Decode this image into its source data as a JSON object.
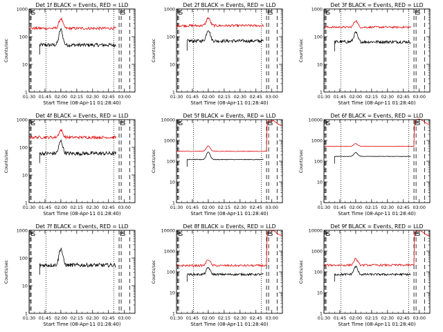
{
  "figure": {
    "background": "#ffffff",
    "colors": {
      "events": "#000000",
      "lld": "#e00000",
      "axes": "#000000"
    }
  },
  "chart_data": [
    {
      "type": "line",
      "panel": "Det 1f",
      "title": "Det 1f BLACK = Events, RED = LLD",
      "ylabel": "Counts/sec",
      "xlabel": "Start Time (08-Apr-11 01:28:40)",
      "y_scale": "log",
      "ylim": [
        1,
        1000
      ],
      "y_ticks": [
        1,
        10,
        100,
        1000
      ],
      "y_tick_labels": [
        "1",
        "10",
        "100",
        "1000"
      ],
      "x_unit": "time of day",
      "x_range": [
        "01:30",
        "03:10"
      ],
      "x_ticks": [
        "01:30",
        "01:45",
        "02:00",
        "02:15",
        "02:30",
        "02:45",
        "03:00"
      ],
      "markers": [
        {
          "time": "01:31",
          "style": "dashed",
          "label": "E"
        },
        {
          "time": "01:32",
          "style": "dashed",
          "label": "S"
        },
        {
          "time": "01:46",
          "style": "dotted"
        },
        {
          "time": "02:50",
          "style": "dotted"
        },
        {
          "time": "02:55",
          "style": "dashed",
          "label": "E"
        },
        {
          "time": "02:57",
          "style": "dashed",
          "label": "S"
        },
        {
          "time": "03:05",
          "style": "dashed"
        }
      ],
      "series": [
        {
          "name": "Events",
          "color": "#000000",
          "data_start": "01:40",
          "data_end": "02:52",
          "baseline": 50,
          "peak_time": "02:00",
          "peak": 180,
          "end_jump": null,
          "noise": 0.13
        },
        {
          "name": "LLD",
          "color": "#e00000",
          "data_start": "01:30",
          "data_end": "02:52",
          "baseline": 200,
          "peak_time": "02:00",
          "peak": 450,
          "end_jump": null,
          "noise": 0.1
        }
      ]
    },
    {
      "type": "line",
      "panel": "Det 2f",
      "title": "Det 2f BLACK = Events, RED = LLD",
      "ylabel": "Counts/sec",
      "xlabel": "Start Time (08-Apr-11 01:28:40)",
      "y_scale": "log",
      "ylim": [
        1,
        1000
      ],
      "y_ticks": [
        1,
        10,
        100,
        1000
      ],
      "y_tick_labels": [
        "1",
        "10",
        "100",
        "1000"
      ],
      "x_unit": "time of day",
      "x_range": [
        "01:30",
        "03:10"
      ],
      "x_ticks": [
        "01:30",
        "01:45",
        "02:00",
        "02:15",
        "02:30",
        "02:45",
        "03:00"
      ],
      "markers": [
        {
          "time": "01:31",
          "style": "dashed",
          "label": "E"
        },
        {
          "time": "01:32",
          "style": "dashed",
          "label": "S"
        },
        {
          "time": "01:46",
          "style": "dotted"
        },
        {
          "time": "02:50",
          "style": "dotted"
        },
        {
          "time": "02:55",
          "style": "dashed",
          "label": "E"
        },
        {
          "time": "02:57",
          "style": "dashed",
          "label": "S"
        },
        {
          "time": "03:05",
          "style": "dashed"
        }
      ],
      "series": [
        {
          "name": "Events",
          "color": "#000000",
          "data_start": "01:40",
          "data_end": "02:52",
          "baseline": 70,
          "peak_time": "02:00",
          "peak": 180,
          "end_jump": null,
          "noise": 0.12
        },
        {
          "name": "LLD",
          "color": "#e00000",
          "data_start": "01:30",
          "data_end": "02:52",
          "baseline": 250,
          "peak_time": "02:00",
          "peak": 480,
          "end_jump": null,
          "noise": 0.09
        }
      ]
    },
    {
      "type": "line",
      "panel": "Det 3f",
      "title": "Det 3f BLACK = Events, RED = LLD",
      "ylabel": "Counts/sec",
      "xlabel": "Start Time (08-Apr-11 01:28:40)",
      "y_scale": "log",
      "ylim": [
        1,
        1000
      ],
      "y_ticks": [
        1,
        10,
        100,
        1000
      ],
      "y_tick_labels": [
        "1",
        "10",
        "100",
        "1000"
      ],
      "x_unit": "time of day",
      "x_range": [
        "01:30",
        "03:10"
      ],
      "x_ticks": [
        "01:30",
        "01:45",
        "02:00",
        "02:15",
        "02:30",
        "02:45",
        "03:00"
      ],
      "markers": [
        {
          "time": "01:31",
          "style": "dashed",
          "label": "E"
        },
        {
          "time": "01:32",
          "style": "dashed",
          "label": "S"
        },
        {
          "time": "01:46",
          "style": "dotted"
        },
        {
          "time": "02:50",
          "style": "dotted"
        },
        {
          "time": "02:55",
          "style": "dashed",
          "label": "E"
        },
        {
          "time": "02:57",
          "style": "dashed",
          "label": "S"
        },
        {
          "time": "03:05",
          "style": "dashed"
        }
      ],
      "series": [
        {
          "name": "Events",
          "color": "#000000",
          "data_start": "01:40",
          "data_end": "02:52",
          "baseline": 65,
          "peak_time": "02:00",
          "peak": 140,
          "end_jump": null,
          "noise": 0.11
        },
        {
          "name": "LLD",
          "color": "#e00000",
          "data_start": "01:30",
          "data_end": "02:52",
          "baseline": 220,
          "peak_time": "02:00",
          "peak": 380,
          "end_jump": null,
          "noise": 0.07
        }
      ]
    },
    {
      "type": "line",
      "panel": "Det 4f",
      "title": "Det 4f BLACK = Events, RED = LLD",
      "ylabel": "Counts/sec",
      "xlabel": "Start Time (08-Apr-11 01:28:40)",
      "y_scale": "log",
      "ylim": [
        1,
        1000
      ],
      "y_ticks": [
        1,
        10,
        100,
        1000
      ],
      "y_tick_labels": [
        "1",
        "10",
        "100",
        "1000"
      ],
      "x_unit": "time of day",
      "x_range": [
        "01:30",
        "03:10"
      ],
      "x_ticks": [
        "01:30",
        "01:45",
        "02:00",
        "02:15",
        "02:30",
        "02:45",
        "03:00"
      ],
      "markers": [
        {
          "time": "01:31",
          "style": "dashed",
          "label": "E"
        },
        {
          "time": "01:32",
          "style": "dashed",
          "label": "S"
        },
        {
          "time": "01:46",
          "style": "dotted"
        },
        {
          "time": "02:50",
          "style": "dotted"
        },
        {
          "time": "02:55",
          "style": "dashed",
          "label": "E"
        },
        {
          "time": "02:57",
          "style": "dashed",
          "label": "S"
        },
        {
          "time": "03:05",
          "style": "dashed"
        }
      ],
      "series": [
        {
          "name": "Events",
          "color": "#000000",
          "data_start": "01:40",
          "data_end": "02:52",
          "baseline": 60,
          "peak_time": "02:00",
          "peak": 170,
          "end_jump": null,
          "noise": 0.14
        },
        {
          "name": "LLD",
          "color": "#e00000",
          "data_start": "01:30",
          "data_end": "02:52",
          "baseline": 230,
          "peak_time": "02:00",
          "peak": 420,
          "end_jump": null,
          "noise": 0.1
        }
      ]
    },
    {
      "type": "line",
      "panel": "Det 5f",
      "title": "Det 5f BLACK = Events, RED = LLD",
      "ylabel": "Counts/sec",
      "xlabel": "Start Time (08-Apr-11 01:28:40)",
      "y_scale": "log",
      "ylim": [
        1,
        10000
      ],
      "y_ticks": [
        1,
        10,
        100,
        1000,
        10000
      ],
      "y_tick_labels": [
        "1",
        "10",
        "100",
        "1000",
        "10000"
      ],
      "x_unit": "time of day",
      "x_range": [
        "01:30",
        "03:10"
      ],
      "x_ticks": [
        "01:30",
        "01:45",
        "02:00",
        "02:15",
        "02:30",
        "02:45",
        "03:00"
      ],
      "markers": [
        {
          "time": "01:31",
          "style": "dashed",
          "label": "E"
        },
        {
          "time": "01:32",
          "style": "dashed",
          "label": "S"
        },
        {
          "time": "01:46",
          "style": "dotted"
        },
        {
          "time": "02:50",
          "style": "dotted"
        },
        {
          "time": "02:55",
          "style": "dashed",
          "label": "E"
        },
        {
          "time": "02:57",
          "style": "dashed",
          "label": "S"
        },
        {
          "time": "03:05",
          "style": "dashed"
        }
      ],
      "series": [
        {
          "name": "Events",
          "color": "#000000",
          "data_start": "01:40",
          "data_end": "02:52",
          "baseline": 120,
          "peak_time": "02:00",
          "peak": 280,
          "end_jump": null,
          "noise": 0.03
        },
        {
          "name": "LLD",
          "color": "#e00000",
          "data_start": "01:30",
          "data_end": "03:10",
          "baseline": 300,
          "peak_time": "02:00",
          "peak": 550,
          "end_jump": 7000,
          "noise": 0.03
        }
      ]
    },
    {
      "type": "line",
      "panel": "Det 6f",
      "title": "Det 6f BLACK = Events, RED = LLD",
      "ylabel": "Counts/sec",
      "xlabel": "Start Time (08-Apr-11 01:28:40)",
      "y_scale": "log",
      "ylim": [
        1,
        10000
      ],
      "y_ticks": [
        1,
        10,
        100,
        1000,
        10000
      ],
      "y_tick_labels": [
        "1",
        "10",
        "100",
        "1000",
        "10000"
      ],
      "x_unit": "time of day",
      "x_range": [
        "01:30",
        "03:10"
      ],
      "x_ticks": [
        "01:30",
        "01:45",
        "02:00",
        "02:15",
        "02:30",
        "02:45",
        "03:00"
      ],
      "markers": [
        {
          "time": "01:31",
          "style": "dashed",
          "label": "E"
        },
        {
          "time": "01:32",
          "style": "dashed",
          "label": "S"
        },
        {
          "time": "01:46",
          "style": "dotted"
        },
        {
          "time": "02:50",
          "style": "dotted"
        },
        {
          "time": "02:55",
          "style": "dashed",
          "label": "E"
        },
        {
          "time": "02:57",
          "style": "dashed",
          "label": "S"
        },
        {
          "time": "03:05",
          "style": "dashed"
        }
      ],
      "series": [
        {
          "name": "Events",
          "color": "#000000",
          "data_start": "01:40",
          "data_end": "02:52",
          "baseline": 170,
          "peak_time": "02:00",
          "peak": 260,
          "end_jump": null,
          "noise": 0.02
        },
        {
          "name": "LLD",
          "color": "#e00000",
          "data_start": "01:30",
          "data_end": "03:10",
          "baseline": 520,
          "peak_time": "02:00",
          "peak": 700,
          "end_jump": 8000,
          "noise": 0.02
        }
      ]
    },
    {
      "type": "line",
      "panel": "Det 7f",
      "title": "Det 7f BLACK = Events, RED = LLD",
      "ylabel": "Counts/sec",
      "xlabel": "Start Time (08-Apr-11 01:28:40)",
      "y_scale": "log",
      "ylim": [
        1,
        1000
      ],
      "y_ticks": [
        1,
        10,
        100,
        1000
      ],
      "y_tick_labels": [
        "1",
        "10",
        "100",
        "1000"
      ],
      "x_unit": "time of day",
      "x_range": [
        "01:30",
        "03:10"
      ],
      "x_ticks": [
        "01:30",
        "01:45",
        "02:00",
        "02:15",
        "02:30",
        "02:45",
        "03:00"
      ],
      "markers": [
        {
          "time": "01:31",
          "style": "dashed",
          "label": "E"
        },
        {
          "time": "01:32",
          "style": "dashed",
          "label": "S"
        },
        {
          "time": "01:46",
          "style": "dotted"
        },
        {
          "time": "02:50",
          "style": "dotted"
        },
        {
          "time": "02:55",
          "style": "dashed",
          "label": "E"
        },
        {
          "time": "02:57",
          "style": "dashed",
          "label": "S"
        },
        {
          "time": "03:05",
          "style": "dashed"
        }
      ],
      "series": [
        {
          "name": "Events",
          "color": "#000000",
          "data_start": "01:40",
          "data_end": "02:52",
          "baseline": 55,
          "peak_time": "02:00",
          "peak": 220,
          "end_jump": null,
          "noise": 0.14
        }
      ]
    },
    {
      "type": "line",
      "panel": "Det 8f",
      "title": "Det 8f BLACK = Events, RED = LLD",
      "ylabel": "Counts/sec",
      "xlabel": "Start Time (08-Apr-11 01:28:40)",
      "y_scale": "log",
      "ylim": [
        1,
        10000
      ],
      "y_ticks": [
        1,
        10,
        100,
        1000,
        10000
      ],
      "y_tick_labels": [
        "1",
        "10",
        "100",
        "1000",
        "10000"
      ],
      "x_unit": "time of day",
      "x_range": [
        "01:30",
        "03:10"
      ],
      "x_ticks": [
        "01:30",
        "01:45",
        "02:00",
        "02:15",
        "02:30",
        "02:45",
        "03:00"
      ],
      "markers": [
        {
          "time": "01:31",
          "style": "dashed",
          "label": "E"
        },
        {
          "time": "01:32",
          "style": "dashed",
          "label": "S"
        },
        {
          "time": "01:46",
          "style": "dotted"
        },
        {
          "time": "02:50",
          "style": "dotted"
        },
        {
          "time": "02:55",
          "style": "dashed",
          "label": "E"
        },
        {
          "time": "02:57",
          "style": "dashed",
          "label": "S"
        },
        {
          "time": "03:05",
          "style": "dashed"
        }
      ],
      "series": [
        {
          "name": "Events",
          "color": "#000000",
          "data_start": "01:40",
          "data_end": "02:52",
          "baseline": 75,
          "peak_time": "02:00",
          "peak": 160,
          "end_jump": null,
          "noise": 0.1
        },
        {
          "name": "LLD",
          "color": "#e00000",
          "data_start": "01:30",
          "data_end": "03:10",
          "baseline": 200,
          "peak_time": "02:00",
          "peak": 400,
          "end_jump": 7500,
          "noise": 0.1
        }
      ]
    },
    {
      "type": "line",
      "panel": "Det 9f",
      "title": "Det 9f BLACK = Events, RED = LLD",
      "ylabel": "Counts/sec",
      "xlabel": "Start Time (08-Apr-11 01:28:40)",
      "y_scale": "log",
      "ylim": [
        1,
        10000
      ],
      "y_ticks": [
        1,
        10,
        100,
        1000,
        10000
      ],
      "y_tick_labels": [
        "1",
        "10",
        "100",
        "1000",
        "10000"
      ],
      "x_unit": "time of day",
      "x_range": [
        "01:30",
        "03:10"
      ],
      "x_ticks": [
        "01:30",
        "01:45",
        "02:00",
        "02:15",
        "02:30",
        "02:45",
        "03:00"
      ],
      "markers": [
        {
          "time": "01:31",
          "style": "dashed",
          "label": "E"
        },
        {
          "time": "01:32",
          "style": "dashed",
          "label": "S"
        },
        {
          "time": "01:46",
          "style": "dotted"
        },
        {
          "time": "02:50",
          "style": "dotted"
        },
        {
          "time": "02:55",
          "style": "dashed",
          "label": "E"
        },
        {
          "time": "02:57",
          "style": "dashed",
          "label": "S"
        },
        {
          "time": "03:05",
          "style": "dashed"
        }
      ],
      "series": [
        {
          "name": "Events",
          "color": "#000000",
          "data_start": "01:40",
          "data_end": "02:52",
          "baseline": 75,
          "peak_time": "02:00",
          "peak": 180,
          "end_jump": null,
          "noise": 0.1
        },
        {
          "name": "LLD",
          "color": "#e00000",
          "data_start": "01:30",
          "data_end": "03:10",
          "baseline": 210,
          "peak_time": "02:00",
          "peak": 420,
          "end_jump": 7500,
          "noise": 0.1
        }
      ]
    }
  ]
}
